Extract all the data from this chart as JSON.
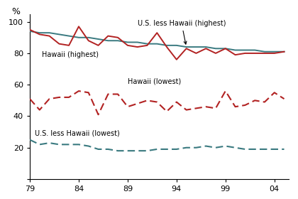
{
  "years": [
    1979,
    1980,
    1981,
    1982,
    1983,
    1984,
    1985,
    1986,
    1987,
    1988,
    1989,
    1990,
    1991,
    1992,
    1993,
    1994,
    1995,
    1996,
    1997,
    1998,
    1999,
    2000,
    2001,
    2002,
    2003,
    2004,
    2005
  ],
  "hawaii_highest": [
    95,
    92,
    91,
    86,
    85,
    97,
    88,
    85,
    91,
    90,
    85,
    84,
    85,
    93,
    84,
    76,
    83,
    80,
    83,
    80,
    83,
    79,
    80,
    80,
    80,
    80,
    81
  ],
  "us_less_hawaii_highest": [
    94,
    93,
    93,
    92,
    91,
    90,
    90,
    89,
    88,
    88,
    87,
    87,
    86,
    86,
    85,
    85,
    84,
    84,
    84,
    83,
    83,
    82,
    82,
    82,
    81,
    81,
    81
  ],
  "hawaii_lowest": [
    51,
    44,
    51,
    52,
    52,
    56,
    55,
    41,
    54,
    54,
    46,
    48,
    50,
    49,
    43,
    49,
    44,
    45,
    46,
    45,
    56,
    46,
    47,
    50,
    49,
    55,
    51
  ],
  "us_less_hawaii_lowest": [
    25,
    22,
    23,
    22,
    22,
    22,
    21,
    19,
    19,
    18,
    18,
    18,
    18,
    19,
    19,
    19,
    20,
    20,
    21,
    20,
    21,
    20,
    19,
    19,
    19,
    19,
    19
  ],
  "color_red": "#b22222",
  "color_teal": "#3a7a80",
  "ylabel": "%",
  "ylim": [
    0,
    105
  ],
  "yticks": [
    0,
    20,
    40,
    60,
    80,
    100
  ],
  "xtick_labels": [
    "79",
    "84",
    "89",
    "94",
    "99",
    "04"
  ],
  "annotation_highest": "U.S. less Hawaii (highest)",
  "annotation_lowest_hawaii": "Hawaii (lowest)",
  "annotation_lowest_us": "U.S. less Hawaii (lowest)",
  "label_hawaii_highest": "Hawaii (highest)"
}
